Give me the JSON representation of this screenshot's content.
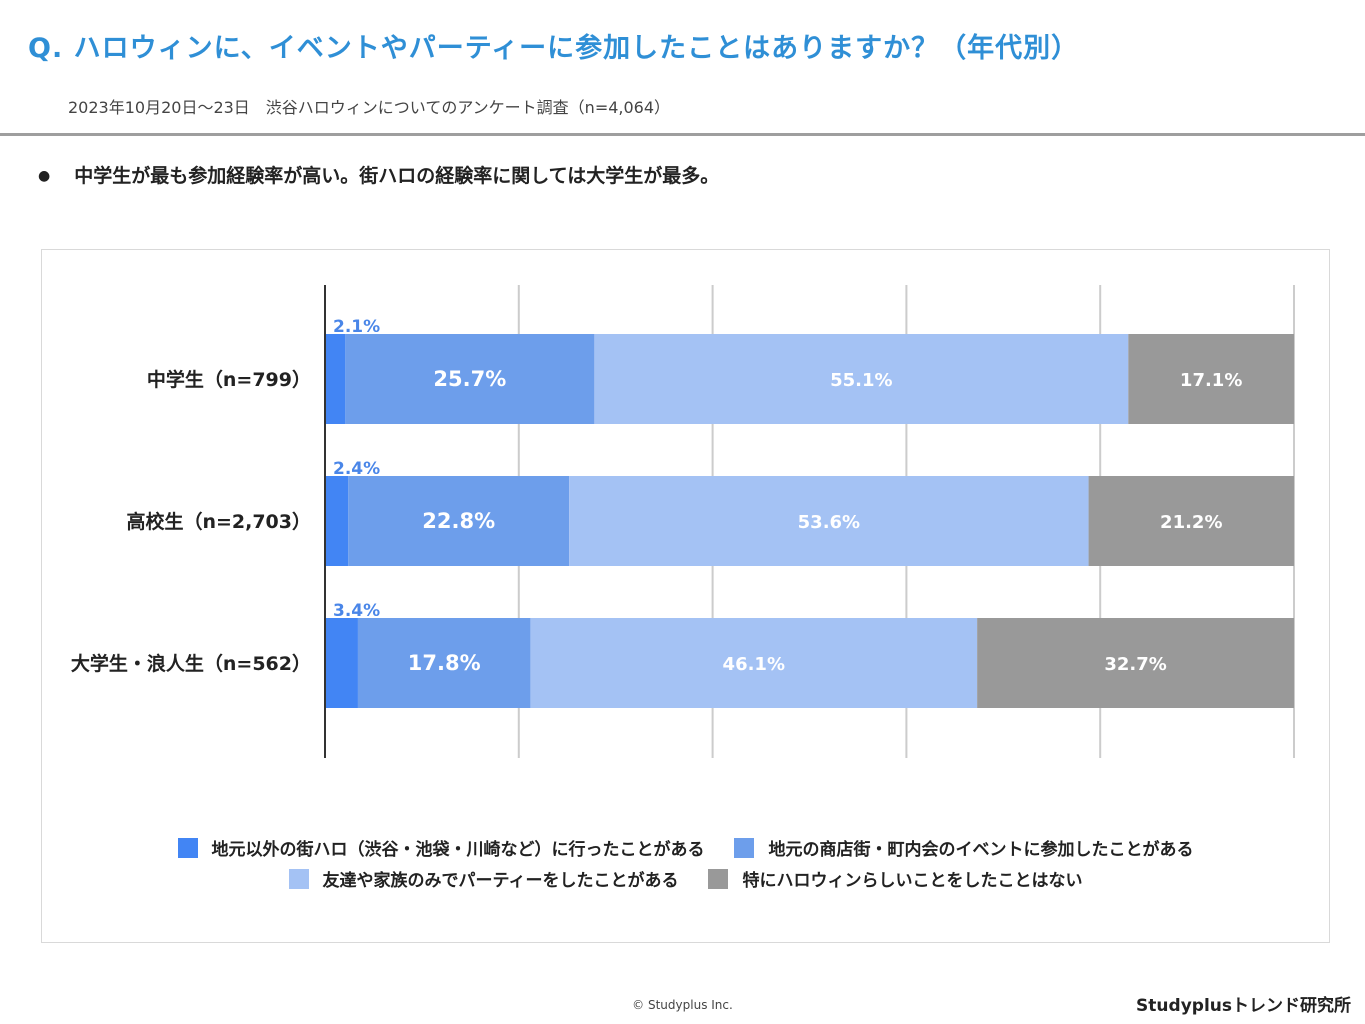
{
  "header": {
    "title": "Q. ハロウィンに、イベントやパーティーに参加したことはありますか？（年代別）",
    "subtitle": "2023年10月20日〜23日　渋谷ハロウィンについてのアンケート調査（n=4,064）"
  },
  "summary": {
    "bullet": "●",
    "text": "中学生が最も参加経験率が高い。街ハロの経験率に関しては大学生が最多。"
  },
  "colors": {
    "series1": "#4285f4",
    "series2": "#6d9eeb",
    "series3": "#a4c2f4",
    "series4": "#999999",
    "small_label": "#4a86e8"
  },
  "chart_data": {
    "type": "bar",
    "orientation": "horizontal",
    "stacked": true,
    "categories": [
      "中学生（n=799）",
      "高校生（n=2,703）",
      "大学生・浪人生（n=562）"
    ],
    "series": [
      {
        "name": "地元以外の街ハロ（渋谷・池袋・川崎など）に行ったことがある",
        "values": [
          2.1,
          2.4,
          3.4
        ],
        "labels": [
          "2.1%",
          "2.4%",
          "3.4%"
        ]
      },
      {
        "name": "地元の商店街・町内会のイベントに参加したことがある",
        "values": [
          25.7,
          22.8,
          17.8
        ],
        "labels": [
          "25.7%",
          "22.8%",
          "17.8%"
        ]
      },
      {
        "name": "友達や家族のみでパーティーをしたことがある",
        "values": [
          55.1,
          53.6,
          46.1
        ],
        "labels": [
          "55.1%",
          "53.6%",
          "46.1%"
        ]
      },
      {
        "name": "特にハロウィンらしいことをしたことはない",
        "values": [
          17.1,
          21.2,
          32.7
        ],
        "labels": [
          "17.1%",
          "21.2%",
          "32.7%"
        ]
      }
    ],
    "xlim": [
      0,
      100
    ],
    "grid": true,
    "legend_position": "bottom"
  },
  "legend": {
    "row1": [
      "地元以外の街ハロ（渋谷・池袋・川崎など）に行ったことがある",
      "地元の商店街・町内会のイベントに参加したことがある"
    ],
    "row2": [
      "友達や家族のみでパーティーをしたことがある",
      "特にハロウィンらしいことをしたことはない"
    ]
  },
  "footer": {
    "copyright": "© Studyplus Inc.",
    "brand": "Studyplusトレンド研究所"
  }
}
